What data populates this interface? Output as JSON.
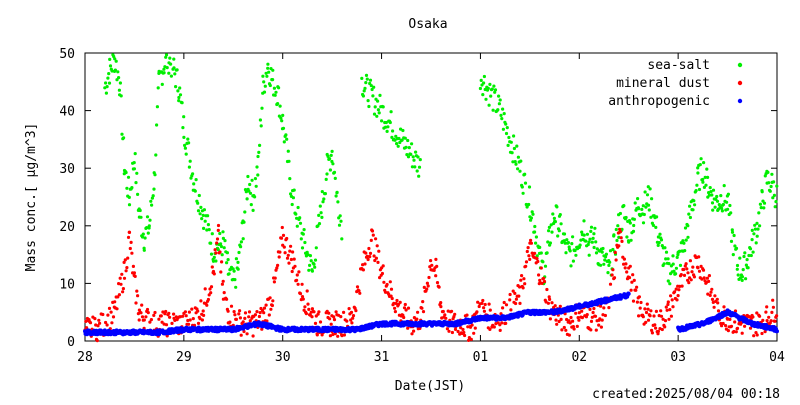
{
  "chart_data": {
    "type": "scatter",
    "title": "Osaka",
    "xlabel": "Date(JST)",
    "ylabel": "Mass conc.[ μg/m^3]",
    "xlim": [
      0,
      7
    ],
    "ylim": [
      0,
      50
    ],
    "x_ticks": [
      0,
      1,
      2,
      3,
      4,
      5,
      6,
      7
    ],
    "x_tick_labels": [
      "28",
      "29",
      "30",
      "31",
      "01",
      "02",
      "03",
      "04"
    ],
    "y_ticks": [
      0,
      10,
      20,
      30,
      40,
      50
    ],
    "y_tick_labels": [
      "0",
      "10",
      "20",
      "30",
      "40",
      "50"
    ],
    "x_unit_note": "days since 28 (JST)",
    "grid": false,
    "legend_position": "top-right",
    "series": [
      {
        "name": "sea-salt",
        "color": "#00ee00",
        "x": [
          0.0,
          0.1,
          0.17,
          0.2,
          0.25,
          0.3,
          0.35,
          0.4,
          0.45,
          0.5,
          0.55,
          0.6,
          0.65,
          0.7,
          0.75,
          0.8,
          0.85,
          0.9,
          0.95,
          1.0,
          1.1,
          1.2,
          1.3,
          1.4,
          1.45,
          1.5,
          1.55,
          1.6,
          1.65,
          1.7,
          1.75,
          1.8,
          1.85,
          1.9,
          1.95,
          2.0,
          2.1,
          2.2,
          2.3,
          2.4,
          2.45,
          2.5,
          2.55,
          2.6,
          2.65,
          2.7,
          2.75,
          2.8,
          3.0,
          3.2,
          3.4,
          3.5,
          3.55,
          3.6,
          3.65,
          3.7,
          3.75,
          4.0,
          4.2,
          4.4,
          4.5,
          4.55,
          4.6,
          4.65,
          4.7,
          4.75,
          4.8,
          4.85,
          4.9,
          4.95,
          5.0,
          5.05,
          5.1,
          5.15,
          5.2,
          5.25,
          5.3,
          5.35,
          5.4,
          5.45,
          5.5,
          5.55,
          5.6,
          5.65,
          5.7,
          5.75,
          5.8,
          5.85,
          5.9,
          5.95,
          6.0,
          6.05,
          6.1,
          6.15,
          6.2,
          6.25,
          6.3,
          6.35,
          6.4,
          6.45,
          6.5,
          6.55,
          6.6,
          6.65,
          6.7,
          6.75,
          6.8,
          6.85,
          6.9,
          6.95,
          7.0
        ],
        "y": [
          null,
          null,
          null,
          44,
          47,
          49,
          45,
          30,
          25,
          32,
          22,
          18,
          20,
          28,
          45,
          48,
          49,
          47,
          44,
          37,
          28,
          22,
          16,
          17,
          12,
          10,
          13,
          20,
          28,
          25,
          30,
          44,
          48,
          45,
          43,
          38,
          25,
          18,
          12,
          24,
          30,
          33,
          25,
          20,
          null,
          null,
          null,
          45,
          40,
          35,
          30,
          null,
          null,
          null,
          null,
          null,
          null,
          46,
          40,
          30,
          24,
          20,
          14,
          12,
          18,
          22,
          20,
          17,
          15,
          16,
          18,
          20,
          17,
          18,
          15,
          14,
          12,
          16,
          20,
          22,
          19,
          21,
          24,
          23,
          25,
          22,
          18,
          15,
          12,
          13,
          14,
          16,
          20,
          24,
          28,
          30,
          27,
          25,
          24,
          25,
          24,
          18,
          13,
          12,
          14,
          17,
          20,
          24,
          28,
          27,
          25
        ]
      },
      {
        "name": "mineral dust",
        "color": "#ff0000",
        "x": [
          0.0,
          0.1,
          0.2,
          0.3,
          0.4,
          0.45,
          0.5,
          0.55,
          0.6,
          0.7,
          0.8,
          0.9,
          1.0,
          1.1,
          1.2,
          1.3,
          1.35,
          1.4,
          1.45,
          1.5,
          1.6,
          1.7,
          1.8,
          1.9,
          2.0,
          2.1,
          2.2,
          2.3,
          2.35,
          2.4,
          2.45,
          2.5,
          2.6,
          2.7,
          2.8,
          2.9,
          3.0,
          3.1,
          3.2,
          3.3,
          3.4,
          3.5,
          3.55,
          3.6,
          3.65,
          3.7,
          3.75,
          3.8,
          3.9,
          4.0,
          4.1,
          4.2,
          4.3,
          4.4,
          4.45,
          4.5,
          4.6,
          4.7,
          4.8,
          4.9,
          5.0,
          5.1,
          5.2,
          5.3,
          5.4,
          5.5,
          5.6,
          5.7,
          5.8,
          5.9,
          6.0,
          6.1,
          6.2,
          6.3,
          6.4,
          6.5,
          6.6,
          6.7,
          6.8,
          6.9,
          7.0
        ],
        "y": [
          2,
          2,
          3,
          5,
          12,
          18,
          10,
          5,
          4,
          3,
          3,
          3,
          3,
          4,
          6,
          12,
          18,
          8,
          5,
          4,
          3,
          3,
          4,
          8,
          18,
          14,
          8,
          5,
          3,
          3,
          3,
          3,
          3,
          4,
          12,
          18,
          12,
          8,
          5,
          3,
          4,
          14,
          12,
          6,
          4,
          3,
          3,
          3,
          2,
          6,
          4,
          4,
          6,
          8,
          12,
          16,
          12,
          6,
          4,
          3,
          5,
          4,
          4,
          6,
          18,
          12,
          6,
          4,
          3,
          5,
          9,
          12,
          14,
          10,
          5,
          4,
          3,
          3,
          3,
          4,
          6
        ]
      },
      {
        "name": "anthropogenic",
        "color": "#0000ff",
        "x": [
          0.0,
          0.25,
          0.5,
          0.75,
          1.0,
          1.25,
          1.5,
          1.75,
          2.0,
          2.25,
          2.5,
          2.75,
          3.0,
          3.25,
          3.5,
          3.75,
          4.0,
          4.25,
          4.5,
          4.75,
          5.0,
          5.25,
          5.5,
          5.75,
          6.0,
          6.25,
          6.5,
          6.75,
          7.0
        ],
        "y": [
          1.5,
          1.5,
          1.5,
          1.5,
          2,
          2,
          2,
          3,
          2,
          2,
          2,
          2,
          3,
          3,
          3,
          3,
          4,
          4,
          5,
          5,
          6,
          7,
          8,
          null,
          2,
          3,
          5,
          3,
          2
        ]
      }
    ]
  },
  "footer": {
    "created": "created:2025/08/04 00:18"
  }
}
